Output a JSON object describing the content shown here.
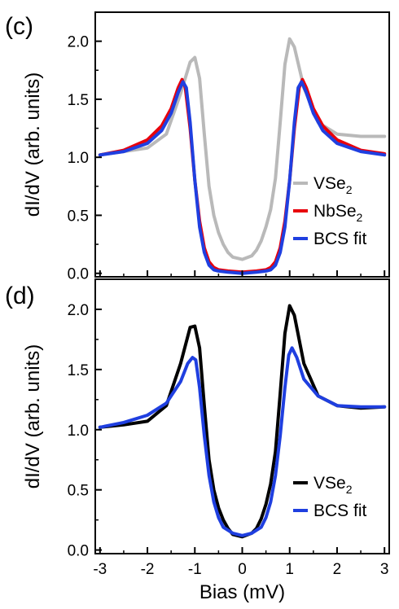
{
  "colors": {
    "vse2_c": "#b9b9b9",
    "nbse2": "#e8000b",
    "bcs": "#1f3fe0",
    "vse2_d": "#000000",
    "axis": "#000000",
    "background": "#ffffff"
  },
  "chart_data": [
    {
      "type": "line",
      "panel_label": "(c)",
      "ylabel": "dI/dV (arb. units)",
      "xlabel": "",
      "xlim": [
        -3.1,
        3.1
      ],
      "ylim": [
        -0.03,
        2.25
      ],
      "x_ticks": [
        -3,
        -2,
        -1,
        0,
        1,
        2,
        3
      ],
      "y_ticks": [
        "0.0",
        "0.5",
        "1.0",
        "1.5",
        "2.0"
      ],
      "y_tick_values": [
        0.0,
        0.5,
        1.0,
        1.5,
        2.0
      ],
      "grid": false,
      "legend_position": "bottom-right",
      "legend": [
        {
          "base": "VSe",
          "sub": "2"
        },
        {
          "base": "NbSe",
          "sub": "2"
        },
        {
          "base": "BCS fit",
          "sub": ""
        }
      ],
      "series": [
        {
          "name": "VSe2",
          "color": "#b9b9b9",
          "x": [
            -3.0,
            -2.5,
            -2.0,
            -1.6,
            -1.3,
            -1.1,
            -1.0,
            -0.9,
            -0.8,
            -0.7,
            -0.6,
            -0.5,
            -0.4,
            -0.3,
            -0.2,
            0.0,
            0.2,
            0.3,
            0.4,
            0.5,
            0.6,
            0.7,
            0.8,
            0.9,
            1.0,
            1.1,
            1.3,
            1.6,
            2.0,
            2.5,
            3.0
          ],
          "y": [
            1.02,
            1.05,
            1.08,
            1.2,
            1.55,
            1.82,
            1.86,
            1.68,
            1.2,
            0.75,
            0.5,
            0.35,
            0.25,
            0.18,
            0.14,
            0.12,
            0.15,
            0.2,
            0.28,
            0.4,
            0.55,
            0.82,
            1.3,
            1.8,
            2.02,
            1.95,
            1.6,
            1.3,
            1.2,
            1.18,
            1.18
          ]
        },
        {
          "name": "NbSe2",
          "color": "#e8000b",
          "x": [
            -3.0,
            -2.5,
            -2.0,
            -1.7,
            -1.5,
            -1.35,
            -1.27,
            -1.2,
            -1.1,
            -1.0,
            -0.9,
            -0.8,
            -0.7,
            -0.6,
            -0.5,
            -0.3,
            0.0,
            0.3,
            0.5,
            0.6,
            0.7,
            0.8,
            0.9,
            1.0,
            1.1,
            1.2,
            1.27,
            1.35,
            1.5,
            1.7,
            2.0,
            2.5,
            3.0
          ],
          "y": [
            1.02,
            1.06,
            1.15,
            1.27,
            1.42,
            1.6,
            1.67,
            1.6,
            1.25,
            0.8,
            0.45,
            0.22,
            0.1,
            0.05,
            0.03,
            0.02,
            0.01,
            0.02,
            0.03,
            0.05,
            0.1,
            0.22,
            0.45,
            0.8,
            1.25,
            1.6,
            1.67,
            1.6,
            1.42,
            1.27,
            1.15,
            1.06,
            1.03
          ]
        },
        {
          "name": "BCS fit",
          "color": "#1f3fe0",
          "x": [
            -3.0,
            -2.5,
            -2.0,
            -1.7,
            -1.5,
            -1.35,
            -1.25,
            -1.18,
            -1.1,
            -1.0,
            -0.9,
            -0.8,
            -0.7,
            -0.6,
            -0.5,
            -0.3,
            0.0,
            0.3,
            0.5,
            0.6,
            0.7,
            0.8,
            0.9,
            1.0,
            1.1,
            1.18,
            1.25,
            1.35,
            1.5,
            1.7,
            2.0,
            2.5,
            3.0
          ],
          "y": [
            1.02,
            1.05,
            1.12,
            1.23,
            1.38,
            1.56,
            1.65,
            1.6,
            1.3,
            0.8,
            0.4,
            0.18,
            0.07,
            0.03,
            0.02,
            0.01,
            0.0,
            0.01,
            0.02,
            0.03,
            0.07,
            0.18,
            0.4,
            0.8,
            1.3,
            1.6,
            1.65,
            1.56,
            1.38,
            1.23,
            1.12,
            1.05,
            1.02
          ]
        }
      ]
    },
    {
      "type": "line",
      "panel_label": "(d)",
      "ylabel": "dI/dV (arb. units)",
      "xlabel": "Bias (mV)",
      "xlim": [
        -3.1,
        3.1
      ],
      "ylim": [
        -0.03,
        2.25
      ],
      "x_ticks": [
        -3,
        -2,
        -1,
        0,
        1,
        2,
        3
      ],
      "y_ticks": [
        "0.0",
        "0.5",
        "1.0",
        "1.5",
        "2.0"
      ],
      "y_tick_values": [
        0.0,
        0.5,
        1.0,
        1.5,
        2.0
      ],
      "grid": false,
      "legend_position": "bottom-right",
      "legend": [
        {
          "base": "VSe",
          "sub": "2"
        },
        {
          "base": "BCS fit",
          "sub": ""
        }
      ],
      "series": [
        {
          "name": "VSe2",
          "color": "#000000",
          "x": [
            -3.0,
            -2.5,
            -2.0,
            -1.6,
            -1.3,
            -1.1,
            -1.0,
            -0.9,
            -0.8,
            -0.7,
            -0.6,
            -0.5,
            -0.4,
            -0.3,
            -0.2,
            0.0,
            0.2,
            0.3,
            0.4,
            0.5,
            0.6,
            0.7,
            0.8,
            0.9,
            1.0,
            1.1,
            1.3,
            1.6,
            2.0,
            2.5,
            3.0
          ],
          "y": [
            1.02,
            1.04,
            1.07,
            1.2,
            1.55,
            1.85,
            1.86,
            1.68,
            1.2,
            0.75,
            0.5,
            0.35,
            0.25,
            0.18,
            0.13,
            0.11,
            0.14,
            0.18,
            0.26,
            0.38,
            0.55,
            0.82,
            1.3,
            1.8,
            2.03,
            1.95,
            1.55,
            1.28,
            1.2,
            1.18,
            1.19
          ]
        },
        {
          "name": "BCS fit",
          "color": "#1f3fe0",
          "x": [
            -3.0,
            -2.5,
            -2.0,
            -1.6,
            -1.3,
            -1.15,
            -1.05,
            -0.98,
            -0.9,
            -0.8,
            -0.7,
            -0.6,
            -0.5,
            -0.4,
            -0.2,
            0.0,
            0.2,
            0.4,
            0.5,
            0.6,
            0.7,
            0.8,
            0.9,
            0.98,
            1.05,
            1.15,
            1.3,
            1.6,
            2.0,
            2.5,
            3.0
          ],
          "y": [
            1.02,
            1.06,
            1.12,
            1.22,
            1.4,
            1.55,
            1.6,
            1.58,
            1.35,
            0.95,
            0.62,
            0.4,
            0.27,
            0.19,
            0.14,
            0.12,
            0.14,
            0.19,
            0.27,
            0.4,
            0.62,
            0.95,
            1.35,
            1.62,
            1.68,
            1.6,
            1.42,
            1.28,
            1.2,
            1.19,
            1.19
          ]
        }
      ]
    }
  ]
}
